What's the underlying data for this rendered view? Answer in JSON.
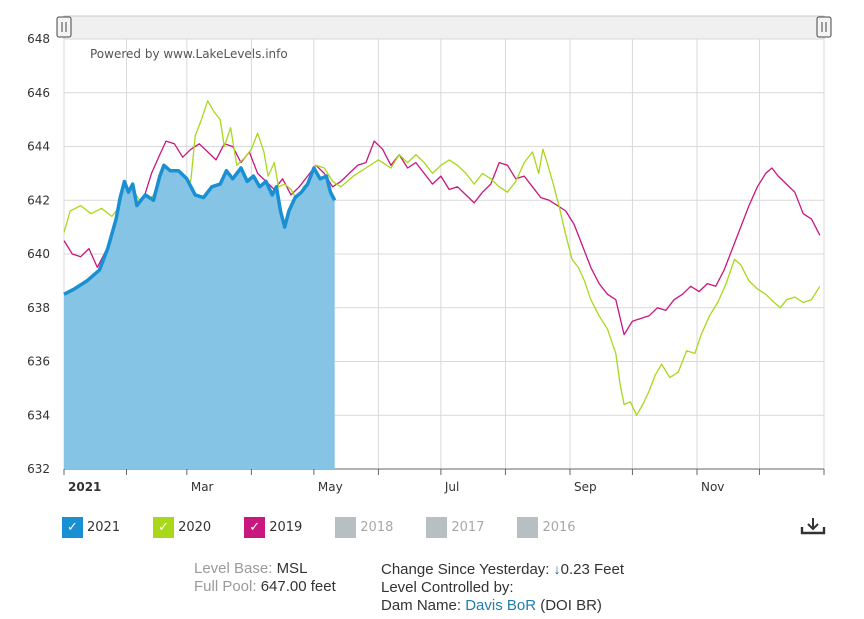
{
  "watermark": "Powered by www.LakeLevels.info",
  "chart_data": {
    "type": "area",
    "ylim": [
      632,
      648
    ],
    "yticks": [
      632,
      634,
      636,
      638,
      640,
      642,
      644,
      646,
      648
    ],
    "x_range": [
      1,
      366
    ],
    "x_ticks": [
      {
        "label": "2021",
        "day": 1,
        "bold": true
      },
      {
        "label": "Mar",
        "day": 60
      },
      {
        "label": "May",
        "day": 121
      },
      {
        "label": "Jul",
        "day": 182
      },
      {
        "label": "Sep",
        "day": 244
      },
      {
        "label": "Nov",
        "day": 305
      }
    ],
    "grid_days": [
      1,
      31,
      60,
      91,
      121,
      152,
      182,
      213,
      244,
      274,
      305,
      335,
      366
    ],
    "grid": true,
    "series": [
      {
        "name": "2021",
        "color": "#1a8fd1",
        "fill": "#86c4e6",
        "style": "area",
        "points": [
          [
            1,
            638.5
          ],
          [
            6,
            638.7
          ],
          [
            12,
            639.0
          ],
          [
            18,
            639.4
          ],
          [
            22,
            640.2
          ],
          [
            26,
            641.3
          ],
          [
            28,
            642.1
          ],
          [
            30,
            642.7
          ],
          [
            32,
            642.3
          ],
          [
            34,
            642.6
          ],
          [
            36,
            641.8
          ],
          [
            40,
            642.2
          ],
          [
            44,
            642.0
          ],
          [
            47,
            642.9
          ],
          [
            49,
            643.3
          ],
          [
            52,
            643.1
          ],
          [
            56,
            643.1
          ],
          [
            60,
            642.8
          ],
          [
            64,
            642.2
          ],
          [
            68,
            642.1
          ],
          [
            72,
            642.5
          ],
          [
            76,
            642.6
          ],
          [
            79,
            643.1
          ],
          [
            82,
            642.8
          ],
          [
            86,
            643.2
          ],
          [
            89,
            642.7
          ],
          [
            92,
            642.9
          ],
          [
            95,
            642.5
          ],
          [
            98,
            642.7
          ],
          [
            101,
            642.2
          ],
          [
            103,
            642.5
          ],
          [
            105,
            641.6
          ],
          [
            107,
            641.0
          ],
          [
            109,
            641.6
          ],
          [
            112,
            642.1
          ],
          [
            115,
            642.3
          ],
          [
            118,
            642.6
          ],
          [
            121,
            643.2
          ],
          [
            124,
            642.8
          ],
          [
            127,
            642.9
          ],
          [
            129,
            642.3
          ],
          [
            131,
            642.0
          ]
        ]
      },
      {
        "name": "2020",
        "color": "#a8d81a",
        "style": "line",
        "points": [
          [
            1,
            640.8
          ],
          [
            4,
            641.6
          ],
          [
            9,
            641.8
          ],
          [
            14,
            641.5
          ],
          [
            19,
            641.7
          ],
          [
            24,
            641.4
          ],
          [
            29,
            641.9
          ],
          [
            34,
            642.4
          ],
          [
            39,
            641.8
          ],
          [
            44,
            642.2
          ],
          [
            47,
            642.8
          ],
          [
            50,
            643.1
          ],
          [
            54,
            643.0
          ],
          [
            58,
            642.6
          ],
          [
            60,
            642.3
          ],
          [
            62,
            642.8
          ],
          [
            64,
            644.4
          ],
          [
            67,
            645.0
          ],
          [
            70,
            645.7
          ],
          [
            73,
            645.3
          ],
          [
            76,
            645.0
          ],
          [
            78,
            644.0
          ],
          [
            81,
            644.7
          ],
          [
            84,
            643.3
          ],
          [
            88,
            643.6
          ],
          [
            91,
            643.9
          ],
          [
            94,
            644.5
          ],
          [
            97,
            643.8
          ],
          [
            99,
            642.9
          ],
          [
            102,
            643.4
          ],
          [
            104,
            642.5
          ],
          [
            107,
            642.6
          ],
          [
            110,
            642.4
          ],
          [
            113,
            642.0
          ],
          [
            116,
            642.5
          ],
          [
            119,
            642.7
          ],
          [
            122,
            643.3
          ],
          [
            126,
            643.2
          ],
          [
            130,
            642.7
          ],
          [
            134,
            642.5
          ],
          [
            140,
            642.9
          ],
          [
            146,
            643.2
          ],
          [
            152,
            643.5
          ],
          [
            158,
            643.2
          ],
          [
            162,
            643.7
          ],
          [
            166,
            643.4
          ],
          [
            170,
            643.7
          ],
          [
            174,
            643.4
          ],
          [
            178,
            643.0
          ],
          [
            182,
            643.3
          ],
          [
            186,
            643.5
          ],
          [
            190,
            643.3
          ],
          [
            194,
            643.0
          ],
          [
            198,
            642.6
          ],
          [
            202,
            643.0
          ],
          [
            206,
            642.8
          ],
          [
            210,
            642.5
          ],
          [
            214,
            642.3
          ],
          [
            218,
            642.7
          ],
          [
            222,
            643.4
          ],
          [
            226,
            643.8
          ],
          [
            229,
            643.0
          ],
          [
            231,
            643.9
          ],
          [
            233,
            643.4
          ],
          [
            236,
            642.6
          ],
          [
            239,
            641.7
          ],
          [
            242,
            640.7
          ],
          [
            245,
            639.8
          ],
          [
            248,
            639.5
          ],
          [
            251,
            639.0
          ],
          [
            254,
            638.3
          ],
          [
            258,
            637.7
          ],
          [
            262,
            637.2
          ],
          [
            266,
            636.3
          ],
          [
            268,
            635.2
          ],
          [
            270,
            634.4
          ],
          [
            273,
            634.5
          ],
          [
            276,
            634.0
          ],
          [
            279,
            634.4
          ],
          [
            282,
            634.9
          ],
          [
            285,
            635.5
          ],
          [
            288,
            635.9
          ],
          [
            292,
            635.4
          ],
          [
            296,
            635.6
          ],
          [
            300,
            636.4
          ],
          [
            304,
            636.3
          ],
          [
            307,
            637.0
          ],
          [
            311,
            637.7
          ],
          [
            315,
            638.2
          ],
          [
            319,
            638.9
          ],
          [
            323,
            639.8
          ],
          [
            326,
            639.6
          ],
          [
            330,
            639.0
          ],
          [
            334,
            638.7
          ],
          [
            338,
            638.5
          ],
          [
            342,
            638.2
          ],
          [
            345,
            638.0
          ],
          [
            348,
            638.3
          ],
          [
            352,
            638.4
          ],
          [
            356,
            638.2
          ],
          [
            360,
            638.3
          ],
          [
            364,
            638.8
          ]
        ]
      },
      {
        "name": "2019",
        "color": "#c8177e",
        "style": "line",
        "points": [
          [
            1,
            640.5
          ],
          [
            5,
            640.0
          ],
          [
            9,
            639.9
          ],
          [
            13,
            640.2
          ],
          [
            17,
            639.5
          ],
          [
            21,
            640.1
          ],
          [
            25,
            640.5
          ],
          [
            28,
            641.0
          ],
          [
            31,
            641.5
          ],
          [
            35,
            641.7
          ],
          [
            39,
            642.0
          ],
          [
            43,
            643.0
          ],
          [
            47,
            643.7
          ],
          [
            50,
            644.2
          ],
          [
            54,
            644.1
          ],
          [
            58,
            643.6
          ],
          [
            62,
            643.9
          ],
          [
            66,
            644.1
          ],
          [
            70,
            643.8
          ],
          [
            74,
            643.5
          ],
          [
            78,
            644.1
          ],
          [
            82,
            644.0
          ],
          [
            86,
            643.4
          ],
          [
            90,
            643.8
          ],
          [
            94,
            643.0
          ],
          [
            98,
            642.7
          ],
          [
            102,
            642.4
          ],
          [
            106,
            642.8
          ],
          [
            110,
            642.2
          ],
          [
            114,
            642.5
          ],
          [
            118,
            642.9
          ],
          [
            122,
            643.3
          ],
          [
            126,
            643.0
          ],
          [
            130,
            642.5
          ],
          [
            134,
            642.7
          ],
          [
            138,
            643.0
          ],
          [
            142,
            643.3
          ],
          [
            146,
            643.4
          ],
          [
            150,
            644.2
          ],
          [
            154,
            643.9
          ],
          [
            158,
            643.3
          ],
          [
            162,
            643.7
          ],
          [
            166,
            643.2
          ],
          [
            170,
            643.4
          ],
          [
            174,
            643.0
          ],
          [
            178,
            642.6
          ],
          [
            182,
            642.9
          ],
          [
            186,
            642.4
          ],
          [
            190,
            642.5
          ],
          [
            194,
            642.2
          ],
          [
            198,
            641.9
          ],
          [
            202,
            642.3
          ],
          [
            206,
            642.6
          ],
          [
            210,
            643.4
          ],
          [
            214,
            643.3
          ],
          [
            218,
            642.8
          ],
          [
            222,
            642.9
          ],
          [
            226,
            642.5
          ],
          [
            230,
            642.1
          ],
          [
            234,
            642.0
          ],
          [
            238,
            641.8
          ],
          [
            242,
            641.6
          ],
          [
            246,
            641.1
          ],
          [
            250,
            640.3
          ],
          [
            254,
            639.5
          ],
          [
            258,
            638.9
          ],
          [
            262,
            638.5
          ],
          [
            266,
            638.3
          ],
          [
            270,
            637.0
          ],
          [
            274,
            637.5
          ],
          [
            278,
            637.6
          ],
          [
            282,
            637.7
          ],
          [
            286,
            638.0
          ],
          [
            290,
            637.9
          ],
          [
            294,
            638.3
          ],
          [
            298,
            638.5
          ],
          [
            302,
            638.8
          ],
          [
            306,
            638.6
          ],
          [
            310,
            638.9
          ],
          [
            314,
            638.8
          ],
          [
            318,
            639.4
          ],
          [
            322,
            640.2
          ],
          [
            326,
            641.0
          ],
          [
            330,
            641.8
          ],
          [
            334,
            642.5
          ],
          [
            338,
            643.0
          ],
          [
            341,
            643.2
          ],
          [
            344,
            642.9
          ],
          [
            348,
            642.6
          ],
          [
            352,
            642.3
          ],
          [
            356,
            641.5
          ],
          [
            360,
            641.3
          ],
          [
            364,
            640.7
          ]
        ]
      }
    ]
  },
  "legend": [
    {
      "label": "2021",
      "color": "#1a8fd1",
      "checked": true
    },
    {
      "label": "2020",
      "color": "#a8d81a",
      "checked": true
    },
    {
      "label": "2019",
      "color": "#c8177e",
      "checked": true
    },
    {
      "label": "2018",
      "color": "#b8bfc2",
      "checked": false
    },
    {
      "label": "2017",
      "color": "#b8bfc2",
      "checked": false
    },
    {
      "label": "2016",
      "color": "#b8bfc2",
      "checked": false
    }
  ],
  "info": {
    "level_base_label": "Level Base:",
    "level_base_value": "MSL",
    "full_pool_label": "Full Pool:",
    "full_pool_value": "647.00 feet",
    "change_label": "Change Since Yesterday:",
    "change_arrow": "↓",
    "change_value": "0.23 Feet",
    "controlled_label": "Level Controlled by:",
    "dam_label": "Dam Name:",
    "dam_link": "Davis BoR",
    "dam_suffix": "(DOI BR)"
  },
  "icons": {
    "download": "download-icon",
    "slider_handle": "scroll-handle-icon"
  }
}
